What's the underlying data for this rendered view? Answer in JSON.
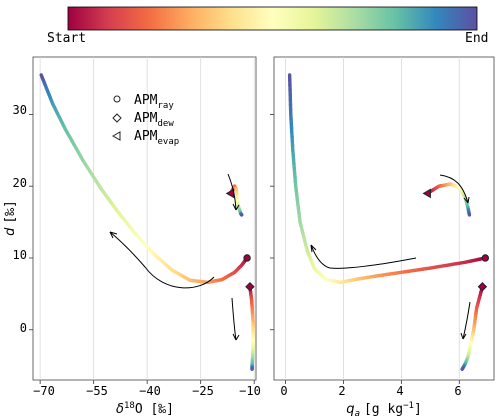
{
  "colorbar": {
    "start_label": "Start",
    "end_label": "End",
    "colormap": [
      "#9e0142",
      "#d53e4f",
      "#f46d43",
      "#fdae61",
      "#fee08b",
      "#ffffbf",
      "#e6f598",
      "#abdda4",
      "#66c2a5",
      "#3288bd",
      "#5e4fa2"
    ]
  },
  "legend": {
    "placement": "upper-center of left panel",
    "entries": [
      {
        "base": "APM",
        "sub": "ray",
        "marker": "circle"
      },
      {
        "base": "APM",
        "sub": "dew",
        "marker": "diamond"
      },
      {
        "base": "APM",
        "sub": "evap",
        "marker": "left-triangle"
      }
    ]
  },
  "axes": {
    "left": {
      "xlabel_main": "δ",
      "xlabel_sup": "18",
      "xlabel_rest": "O [‰]",
      "ylabel_main": "d",
      "ylabel_rest": "[‰]",
      "xticks": [
        "−70",
        "−55",
        "−40",
        "−25",
        "−10"
      ],
      "yticks": [
        "0",
        "10",
        "20",
        "30"
      ]
    },
    "right": {
      "xlabel_main": "q",
      "xlabel_sub": "a",
      "xlabel_rest": "[g kg",
      "xlabel_sup": "−1",
      "xlabel_end": "]",
      "xticks": [
        "0",
        "2",
        "4",
        "6"
      ]
    }
  },
  "chart_data": [
    {
      "type": "line",
      "panel": "left",
      "xlabel": "δ18O [‰]",
      "ylabel": "d [‰]",
      "xlim": [
        -72,
        -9.5
      ],
      "ylim": [
        -7,
        38
      ],
      "grid": "vertical",
      "colored_by": "time (Start → End)",
      "series": [
        {
          "name": "APMray",
          "marker": "circle",
          "x": [
            -12,
            -13.5,
            -15.5,
            -19,
            -23,
            -28,
            -33,
            -38,
            -43,
            -48,
            -53,
            -58,
            -63,
            -66.5,
            -68.5,
            -69.7
          ],
          "y": [
            10,
            9,
            8,
            7,
            6.6,
            6.9,
            8.3,
            10.5,
            13.2,
            16.3,
            19.7,
            23.6,
            28,
            31.5,
            34,
            35.5
          ]
        },
        {
          "name": "APMdew",
          "marker": "diamond",
          "x": [
            -11.2,
            -10.7,
            -10.3,
            -10.2,
            -10.4,
            -10.6,
            -10.6
          ],
          "y": [
            6,
            4,
            1,
            -1.5,
            -3.5,
            -5,
            -5.5
          ]
        },
        {
          "name": "APMevap",
          "marker": "left-triangle",
          "x": [
            -16.6,
            -15.5,
            -15,
            -14.8,
            -14.3,
            -13.8,
            -13.5
          ],
          "y": [
            19,
            20,
            19.5,
            18,
            17,
            16.2,
            16
          ]
        }
      ]
    },
    {
      "type": "line",
      "panel": "right",
      "xlabel": "qa [g kg−1]",
      "xlim": [
        -0.4,
        7.2
      ],
      "ylim": [
        -7,
        38
      ],
      "grid": "vertical",
      "colored_by": "time (Start → End)",
      "series": [
        {
          "name": "APMray",
          "marker": "circle",
          "x": [
            6.9,
            6.2,
            5,
            4,
            3,
            2.4,
            1.9,
            1.4,
            1,
            0.75,
            0.5,
            0.35,
            0.25,
            0.18,
            0.14
          ],
          "y": [
            10,
            9.4,
            8.6,
            8,
            7.4,
            7,
            6.6,
            7,
            8.5,
            11,
            15,
            20,
            25,
            30,
            35.5
          ]
        },
        {
          "name": "APMdew",
          "marker": "diamond",
          "x": [
            6.8,
            6.6,
            6.5,
            6.4,
            6.3,
            6.2,
            6.1
          ],
          "y": [
            6,
            3,
            0,
            -2,
            -3.8,
            -4.8,
            -5.5
          ]
        },
        {
          "name": "APMevap",
          "marker": "left-triangle",
          "x": [
            4.9,
            5.3,
            5.7,
            6,
            6.2,
            6.3,
            6.35
          ],
          "y": [
            19,
            20,
            20.3,
            19.8,
            18.5,
            17,
            16
          ]
        }
      ]
    }
  ]
}
